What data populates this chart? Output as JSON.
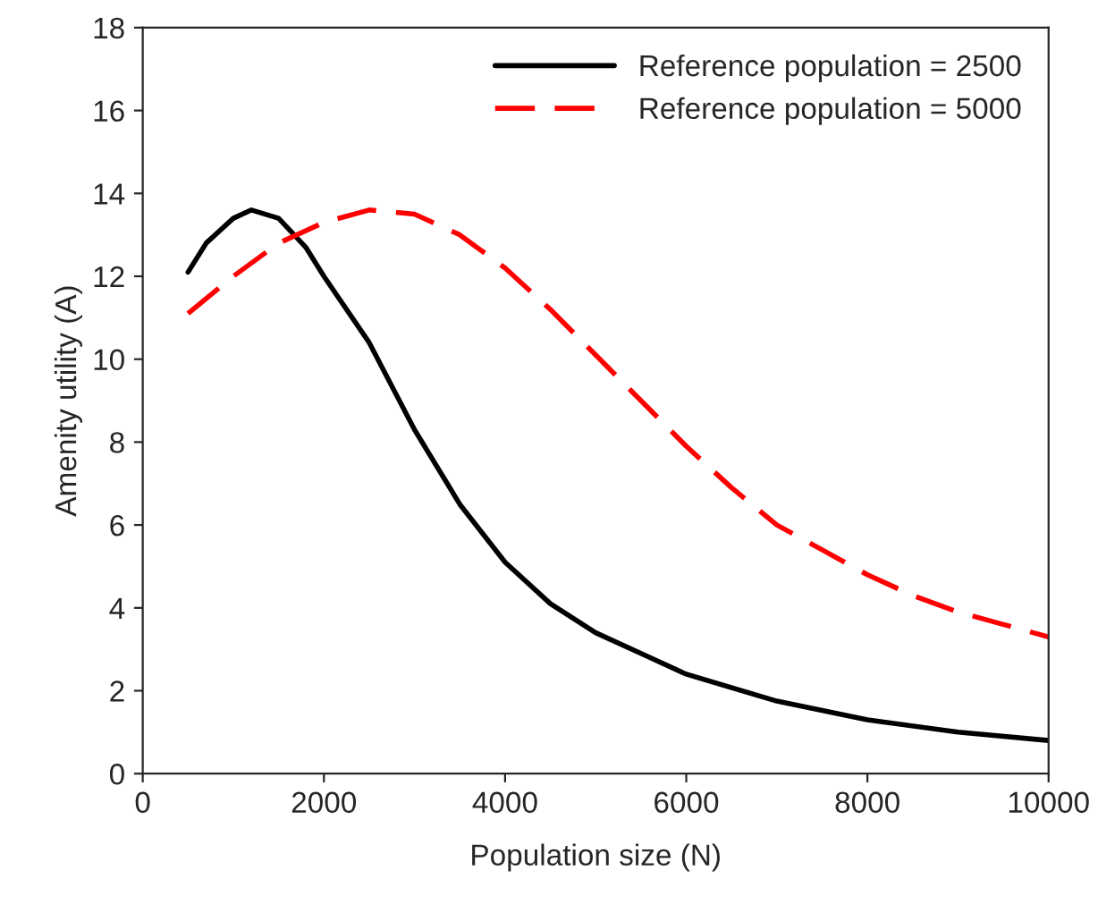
{
  "chart_data": {
    "type": "line",
    "xlabel": "Population size (N)",
    "ylabel": "Amenity utility (A)",
    "xlim": [
      0,
      10000
    ],
    "xticks": [
      0,
      2000,
      4000,
      6000,
      8000,
      10000
    ],
    "ylim": [
      0,
      18
    ],
    "yticks": [
      0,
      2,
      4,
      6,
      8,
      10,
      12,
      14,
      16,
      18
    ],
    "grid": false,
    "legend": "top right",
    "marker": "none",
    "series": [
      {
        "name": "Reference population = 2500",
        "color": "#000000",
        "line_style": "solid",
        "x": [
          500,
          700,
          1000,
          1200,
          1500,
          1800,
          2000,
          2500,
          3000,
          3500,
          4000,
          4500,
          5000,
          5500,
          6000,
          7000,
          8000,
          9000,
          10000
        ],
        "values": [
          12.1,
          12.8,
          13.4,
          13.6,
          13.4,
          12.7,
          12.0,
          10.4,
          8.3,
          6.5,
          5.1,
          4.1,
          3.4,
          2.9,
          2.4,
          1.75,
          1.3,
          1.0,
          0.8
        ]
      },
      {
        "name": "Reference population = 5000",
        "color": "#ff0000",
        "line_style": "dashed",
        "x": [
          500,
          1000,
          1500,
          2000,
          2500,
          3000,
          3500,
          4000,
          4500,
          5000,
          5500,
          6000,
          6500,
          7000,
          7500,
          8000,
          8500,
          9000,
          9500,
          10000
        ],
        "values": [
          11.1,
          12.0,
          12.8,
          13.3,
          13.6,
          13.5,
          13.0,
          12.2,
          11.2,
          10.1,
          9.0,
          7.9,
          6.9,
          6.0,
          5.4,
          4.8,
          4.3,
          3.9,
          3.6,
          3.3
        ]
      }
    ]
  }
}
